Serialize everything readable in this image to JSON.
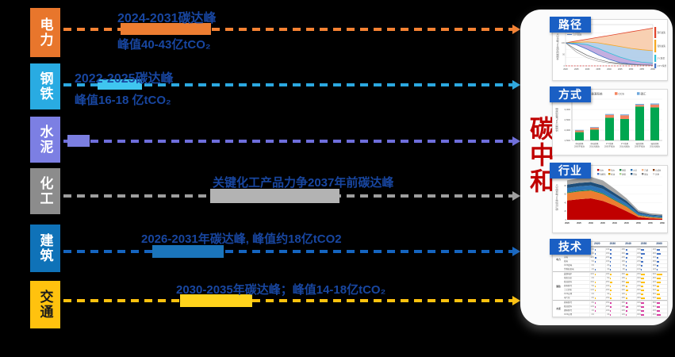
{
  "colors": {
    "page-bg": "#000000",
    "panel-bg": "#FBFBFB",
    "label-blue": "#1846A0",
    "title-red": "#C00000",
    "tag-blue": "#1A5FC4"
  },
  "rows": [
    {
      "sector": "电力",
      "sector_color": "#E8762C",
      "sector_text_color": "#FFFFFF",
      "line_color": "#F58233",
      "bar_color": "#ED7D31",
      "label_top": "2024-2031碳达峰",
      "label_bottom": "峰值40-43亿tCO₂"
    },
    {
      "sector": "钢铁",
      "sector_color": "#29ABE2",
      "sector_text_color": "#FFFFFF",
      "line_color": "#2BA8E0",
      "bar_color": "#3FC6F0",
      "label_top": "2022-2025碳达峰",
      "label_bottom": "峰值16-18 亿tCO₂"
    },
    {
      "sector": "水泥",
      "sector_color": "#7C7FE3",
      "sector_text_color": "#FFFFFF",
      "line_color": "#6E6EDC",
      "bar_color": "#7B7EE0",
      "label_top": "",
      "label_bottom": ""
    },
    {
      "sector": "化工",
      "sector_color": "#8C8C8C",
      "sector_text_color": "#FFFFFF",
      "line_color": "#9E9E9E",
      "bar_color": "#B3B3B3",
      "label_top": "关键化工产品力争2037年前碳达峰",
      "label_bottom": ""
    },
    {
      "sector": "建筑",
      "sector_color": "#0F72B8",
      "sector_text_color": "#FFFFFF",
      "line_color": "#1565C0",
      "bar_color": "#1B75BB",
      "label_top": "2026-2031年碳达峰, 峰值约18亿tCO2",
      "label_bottom": ""
    },
    {
      "sector": "交通",
      "sector_color": "#FFC20E",
      "sector_text_color": "#1A1A1A",
      "line_color": "#FFC20E",
      "bar_color": "#FFD31C",
      "label_top": "2030-2035年碳达峰；峰值14-18亿tCO₂",
      "label_bottom": ""
    }
  ],
  "panel": {
    "title": "碳中和",
    "charts": [
      {
        "tag": "路径"
      },
      {
        "tag": "方式"
      },
      {
        "tag": "行业"
      },
      {
        "tag": "技术"
      }
    ]
  },
  "chart_data": [
    {
      "id": "paths",
      "type": "area",
      "title": "路径",
      "ylabel": "中国能源相关CO₂排放(亿t)",
      "x": [
        2020,
        2025,
        2030,
        2035,
        2040,
        2045,
        2050,
        2055,
        2060
      ],
      "yticks": [
        0,
        50,
        100,
        150
      ],
      "series": [
        {
          "name": "现有政策",
          "color": "#E0432B",
          "values": [
            100,
            108,
            116,
            124,
            132,
            140,
            148,
            156,
            164
          ]
        },
        {
          "name": "强化政策",
          "color": "#F5A623",
          "values": [
            100,
            102,
            104,
            100,
            92,
            84,
            76,
            70,
            66
          ]
        },
        {
          "name": "2℃情景",
          "color": "#30C0D8",
          "values": [
            100,
            98,
            92,
            76,
            56,
            38,
            24,
            16,
            12
          ]
        },
        {
          "name": "1.5℃情景",
          "color": "#4472C4",
          "values": [
            100,
            92,
            72,
            48,
            28,
            14,
            8,
            4,
            2
          ]
        }
      ],
      "extra_lines": [
        {
          "color": "#555555",
          "values": [
            100,
            70,
            45,
            28,
            16,
            10,
            6,
            4,
            3
          ]
        },
        {
          "color": "#999999",
          "values": [
            100,
            60,
            35,
            20,
            12,
            7,
            5,
            3,
            2
          ]
        }
      ],
      "zero_line": true,
      "legend_position": "top-left"
    },
    {
      "id": "ways",
      "type": "stacked-bar",
      "title": "方式",
      "ylabel": "全国累计CO₂减排贡献量",
      "yticks": [
        "1,500",
        "2,000",
        "2,500",
        "3,000",
        "3,500"
      ],
      "categories": [
        [
          "中和情景",
          "2060不排放"
        ],
        [
          "中和情景",
          "20亿吨排放"
        ],
        [
          "2℃情景",
          "2060不排放"
        ],
        [
          "2℃情景",
          "20亿吨排放"
        ],
        [
          "强化情景",
          "2060不排放"
        ],
        [
          "强化情景",
          "20亿吨排放"
        ]
      ],
      "series": [
        {
          "name": "能源系统",
          "color": "#00A650",
          "values": [
            20,
            26,
            55,
            52,
            82,
            80
          ]
        },
        {
          "name": "CCS",
          "color": "#F4845F",
          "values": [
            4,
            5,
            7,
            9,
            4,
            7
          ]
        },
        {
          "name": "碳汇",
          "color": "#6FA8DC",
          "values": [
            1.5,
            1.5,
            2,
            2,
            2.5,
            2.5
          ]
        }
      ],
      "legend_position": "top"
    },
    {
      "id": "industries",
      "type": "stacked-area",
      "title": "行业",
      "ylabel": "各行业直接CO₂排放量(亿t)",
      "x": [
        2020,
        2025,
        2030,
        2035,
        2040,
        2045,
        2050,
        2055,
        2060
      ],
      "yticks": [
        0,
        20,
        40,
        60,
        80,
        100
      ],
      "layers": [
        {
          "name": "电力",
          "color": "#C00000",
          "values": [
            45,
            48,
            50,
            44,
            33,
            20,
            6,
            3,
            2
          ]
        },
        {
          "name": "热力",
          "color": "#ED7D31",
          "values": [
            17,
            18,
            18,
            16,
            12,
            10,
            4,
            3,
            2
          ]
        },
        {
          "name": "钢铁",
          "color": "#1E8449",
          "values": [
            2,
            2,
            2,
            2,
            2,
            2,
            1,
            1,
            1
          ]
        },
        {
          "name": "水泥",
          "color": "#2E75B6",
          "values": [
            10,
            10,
            10,
            10,
            8,
            6,
            4,
            3,
            3
          ]
        },
        {
          "name": "建筑交通",
          "color": "#1F4E79",
          "values": [
            8,
            8,
            8,
            8,
            7,
            6,
            3,
            2,
            2
          ]
        },
        {
          "name": "其他",
          "color": "#A6A6A6",
          "values": [
            10,
            11,
            12,
            12,
            10,
            6,
            4,
            3,
            3
          ]
        }
      ],
      "legend_rows": [
        [
          "电力",
          "热力",
          "钢铁",
          "水泥",
          "乙烯",
          "合成氨"
        ],
        [
          "电解铝",
          "炼油",
          "建筑",
          "货运",
          "客运",
          "其他"
        ]
      ],
      "legend_colors": [
        "#C00000",
        "#ED7D31",
        "#1E8449",
        "#2E75B6",
        "#F4B183",
        "#843C0C",
        "#4472C4",
        "#BF8F00",
        "#A9D18E",
        "#1F4E79",
        "#7F7F7F",
        "#D9D9D9"
      ],
      "legend_position": "top-right"
    },
    {
      "id": "tech",
      "type": "table",
      "title": "技术",
      "columns": [
        "2020",
        "2030",
        "2040",
        "2050",
        "2060"
      ],
      "groups": [
        {
          "name": "电力",
          "color": "#4472C4",
          "rows": [
            {
              "name": "风电",
              "values": [
                6,
                14,
                25,
                34,
                40
              ]
            },
            {
              "name": "光伏",
              "values": [
                4,
                16,
                30,
                42,
                48
              ]
            },
            {
              "name": "水电",
              "values": [
                18,
                20,
                20,
                18,
                16
              ]
            },
            {
              "name": "核电",
              "values": [
                5,
                10,
                16,
                22,
                28
              ]
            },
            {
              "name": "CCS煤电",
              "values": [
                0,
                2,
                8,
                14,
                18
              ]
            },
            {
              "name": "生物质发电",
              "values": [
                2,
                4,
                8,
                10,
                12
              ]
            }
          ]
        },
        {
          "name": "钢铁",
          "color": "#FFC000",
          "rows": [
            {
              "name": "废钢电炉",
              "values": [
                10,
                18,
                30,
                45,
                60
              ]
            },
            {
              "name": "氢能冶金",
              "values": [
                0,
                5,
                15,
                30,
                45
              ]
            },
            {
              "name": "能效提升",
              "values": [
                15,
                25,
                35,
                40,
                42
              ]
            },
            {
              "name": "原料替代",
              "values": [
                5,
                10,
                18,
                24,
                30
              ]
            },
            {
              "name": "工艺优化",
              "values": [
                12,
                20,
                26,
                30,
                32
              ]
            },
            {
              "name": "CCS应用",
              "values": [
                0,
                3,
                10,
                22,
                35
              ]
            },
            {
              "name": "电气化",
              "values": [
                8,
                15,
                25,
                38,
                50
              ]
            }
          ]
        },
        {
          "name": "水泥",
          "color": "#D63FA0",
          "rows": [
            {
              "name": "熟料替代",
              "values": [
                8,
                15,
                25,
                32,
                38
              ]
            },
            {
              "name": "能效提升",
              "values": [
                12,
                20,
                28,
                32,
                34
              ]
            },
            {
              "name": "燃料替代",
              "values": [
                4,
                10,
                20,
                30,
                40
              ]
            },
            {
              "name": "CCS应用",
              "values": [
                0,
                4,
                14,
                30,
                45
              ]
            }
          ]
        },
        {
          "name": "交通",
          "color": "#FF4040",
          "rows": [
            {
              "name": "电动汽车",
              "values": [
                5,
                20,
                45,
                70,
                85
              ]
            },
            {
              "name": "氢燃料车",
              "values": [
                0,
                5,
                18,
                35,
                50
              ]
            },
            {
              "name": "生物燃料",
              "values": [
                2,
                8,
                15,
                22,
                28
              ]
            }
          ]
        },
        {
          "name": "建筑",
          "color": "#F5A623",
          "rows": [
            {
              "name": "电气化供暖",
              "values": [
                10,
                25,
                45,
                65,
                80
              ]
            }
          ]
        }
      ]
    }
  ]
}
